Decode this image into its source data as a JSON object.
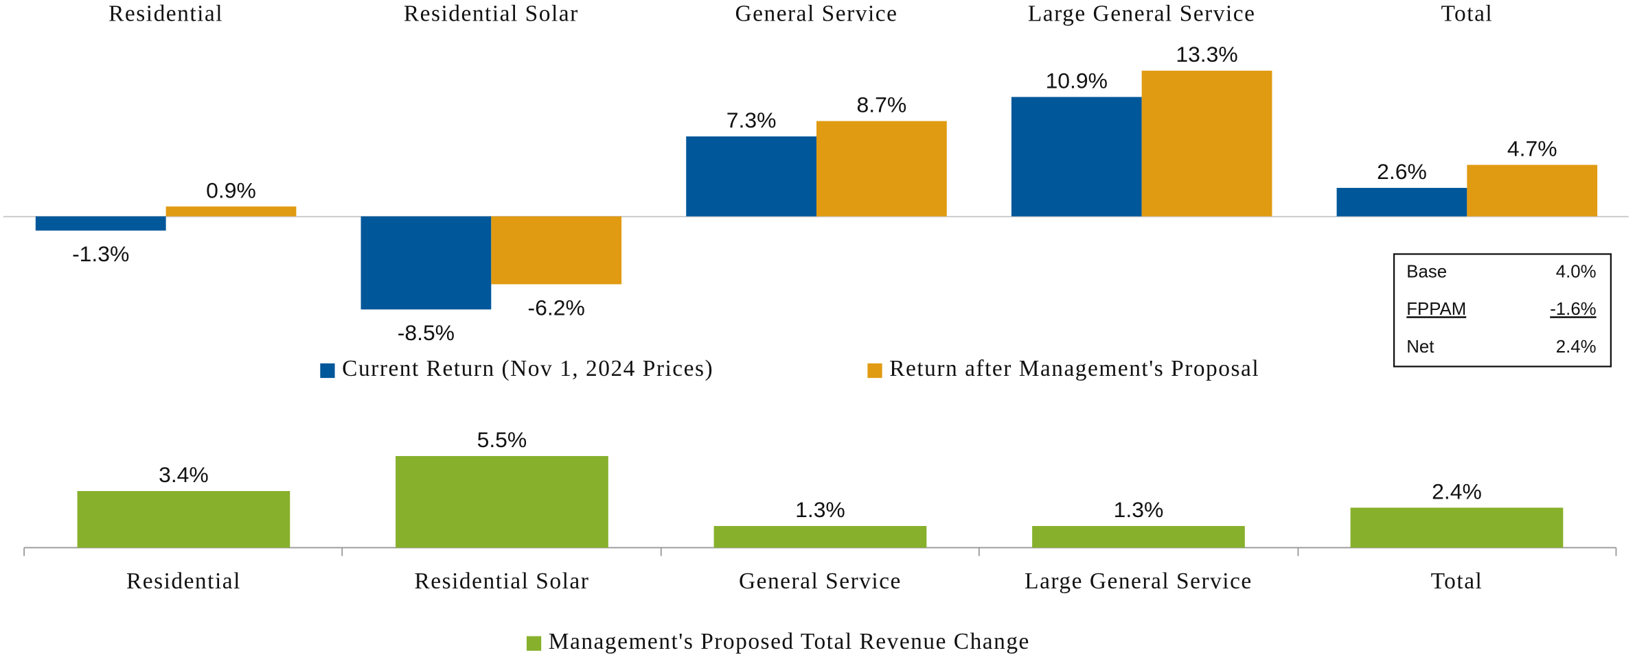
{
  "chart_data": [
    {
      "type": "bar",
      "categories": [
        "Residential",
        "Residential Solar",
        "General Service",
        "Large General Service",
        "Total"
      ],
      "series": [
        {
          "name": "Current Return (Nov 1, 2024 Prices)",
          "color": "#00579a",
          "values": [
            -1.3,
            -8.5,
            7.3,
            10.9,
            2.6
          ],
          "value_labels": [
            "-1.3%",
            "-8.5%",
            "7.3%",
            "10.9%",
            "2.6%"
          ]
        },
        {
          "name": "Return after Management's Proposal",
          "color": "#e09b12",
          "values": [
            0.9,
            -6.2,
            8.7,
            13.3,
            4.7
          ],
          "value_labels": [
            "0.9%",
            "-6.2%",
            "8.7%",
            "13.3%",
            "4.7%"
          ]
        }
      ],
      "ylim": [
        -10,
        15
      ]
    },
    {
      "type": "bar",
      "categories": [
        "Residential",
        "Residential Solar",
        "General Service",
        "Large General Service",
        "Total"
      ],
      "series": [
        {
          "name": "Management's Proposed Total Revenue Change",
          "color": "#87b02c",
          "values": [
            3.4,
            5.5,
            1.3,
            1.3,
            2.4
          ],
          "value_labels": [
            "3.4%",
            "5.5%",
            "1.3%",
            "1.3%",
            "2.4%"
          ]
        }
      ],
      "ylim": [
        0,
        7
      ]
    }
  ],
  "inset_table": {
    "rows": [
      [
        "Base",
        "4.0%"
      ],
      [
        "FPPAM",
        "-1.6%"
      ],
      [
        "Net",
        "2.4%"
      ]
    ]
  }
}
